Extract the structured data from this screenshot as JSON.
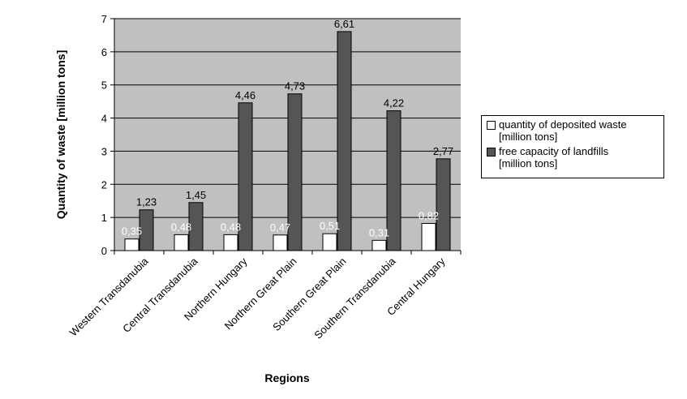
{
  "chart_data": {
    "type": "bar",
    "categories": [
      "Western Transdanubia",
      "Central Transdanubia",
      "Northern Hungary",
      "Northern Great Plain",
      "Southern Great Plain",
      "Southern Transdanubia",
      "Central Hungary"
    ],
    "series": [
      {
        "name": "quantity of deposited waste\n[million tons]",
        "values": [
          0.35,
          0.48,
          0.48,
          0.47,
          0.51,
          0.31,
          0.82
        ],
        "labels": [
          "0,35",
          "0,48",
          "0,48",
          "0,47",
          "0,51",
          "0,31",
          "0,82"
        ],
        "color": "#ffffff",
        "label_color": "#ffffff"
      },
      {
        "name": "free capacity of landfills\n[million tons]",
        "values": [
          1.23,
          1.45,
          4.46,
          4.73,
          6.61,
          4.22,
          2.77
        ],
        "labels": [
          "1,23",
          "1,45",
          "4,46",
          "4,73",
          "6,61",
          "4,22",
          "2,77"
        ],
        "color": "#555555",
        "label_color": "#000000"
      }
    ],
    "xlabel": "Regions",
    "ylabel": "Quantity of waste [million tons]",
    "ylim": [
      0,
      7
    ],
    "yticks": [
      "0",
      "1",
      "2",
      "3",
      "4",
      "5",
      "6",
      "7"
    ],
    "grid": true,
    "plot_background": "#c0c0c0",
    "legend_position": "right"
  }
}
